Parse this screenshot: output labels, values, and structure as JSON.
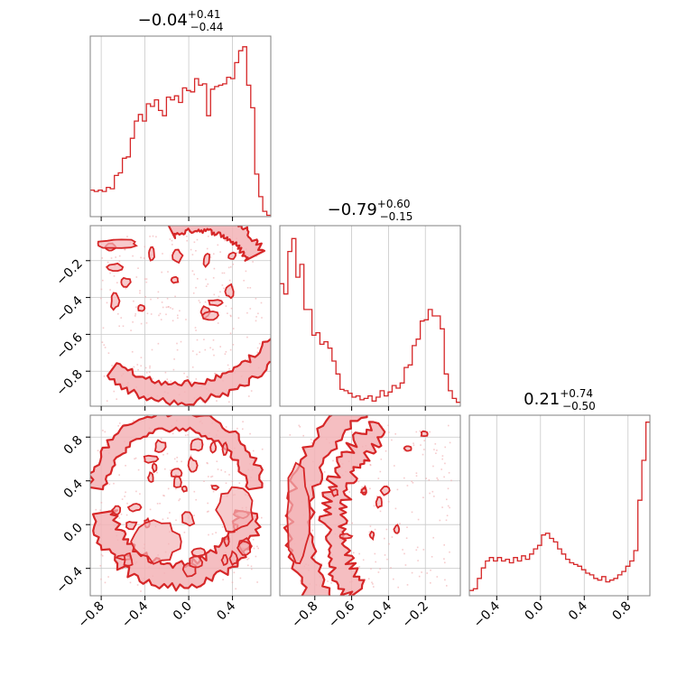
{
  "chart_data": {
    "type": "corner",
    "color": "#d62728",
    "fill_color": "#f3b3b6",
    "grid": true,
    "titles": [
      {
        "value": "−0.04",
        "plus": "+0.41",
        "minus": "−0.44"
      },
      {
        "value": "−0.79",
        "plus": "+0.60",
        "minus": "−0.15"
      },
      {
        "value": "0.21",
        "plus": "+0.74",
        "minus": "−0.50"
      }
    ],
    "params": [
      {
        "range": [
          -0.9,
          0.75
        ],
        "ticks": [
          -0.8,
          -0.4,
          0.0,
          0.4
        ],
        "tick_labels": [
          "−0.8",
          "−0.4",
          "0.0",
          "0.4"
        ]
      },
      {
        "range": [
          -0.99,
          -0.01
        ],
        "ticks": [
          -0.8,
          -0.6,
          -0.4,
          -0.2
        ],
        "tick_labels": [
          "−0.8",
          "−0.6",
          "−0.4",
          "−0.2"
        ]
      },
      {
        "range": [
          -0.65,
          1.0
        ],
        "ticks": [
          -0.4,
          0.0,
          0.4,
          0.8
        ],
        "tick_labels": [
          "−0.4",
          "0.0",
          "0.4",
          "0.8"
        ]
      }
    ],
    "histograms": [
      [
        0.2,
        0.19,
        0.2,
        0.19,
        0.22,
        0.21,
        0.31,
        0.33,
        0.44,
        0.45,
        0.59,
        0.72,
        0.77,
        0.72,
        0.85,
        0.83,
        0.88,
        0.8,
        0.76,
        0.9,
        0.88,
        0.91,
        0.86,
        0.97,
        0.95,
        0.94,
        1.04,
        0.99,
        1.0,
        0.76,
        0.96,
        0.98,
        0.99,
        1.0,
        1.05,
        1.04,
        1.16,
        1.25,
        1.28,
        0.99,
        0.82,
        0.32,
        0.15,
        0.04,
        0.01
      ],
      [
        0.95,
        0.87,
        1.2,
        1.3,
        1.0,
        1.1,
        0.75,
        0.75,
        0.55,
        0.57,
        0.48,
        0.5,
        0.45,
        0.35,
        0.25,
        0.13,
        0.12,
        0.1,
        0.07,
        0.08,
        0.05,
        0.06,
        0.08,
        0.04,
        0.07,
        0.12,
        0.08,
        0.11,
        0.16,
        0.14,
        0.18,
        0.3,
        0.32,
        0.47,
        0.52,
        0.66,
        0.67,
        0.75,
        0.7,
        0.7,
        0.6,
        0.25,
        0.12,
        0.06,
        0.03
      ],
      [
        0.03,
        0.04,
        0.1,
        0.16,
        0.2,
        0.22,
        0.2,
        0.22,
        0.2,
        0.21,
        0.19,
        0.22,
        0.2,
        0.23,
        0.21,
        0.24,
        0.27,
        0.29,
        0.35,
        0.36,
        0.33,
        0.31,
        0.27,
        0.24,
        0.21,
        0.19,
        0.18,
        0.17,
        0.15,
        0.13,
        0.12,
        0.1,
        0.09,
        0.11,
        0.08,
        0.09,
        0.1,
        0.12,
        0.14,
        0.17,
        0.2,
        0.26,
        0.55,
        0.78,
        1.0
      ]
    ],
    "hist_ymax": [
      1.36,
      1.4,
      1.04
    ]
  }
}
